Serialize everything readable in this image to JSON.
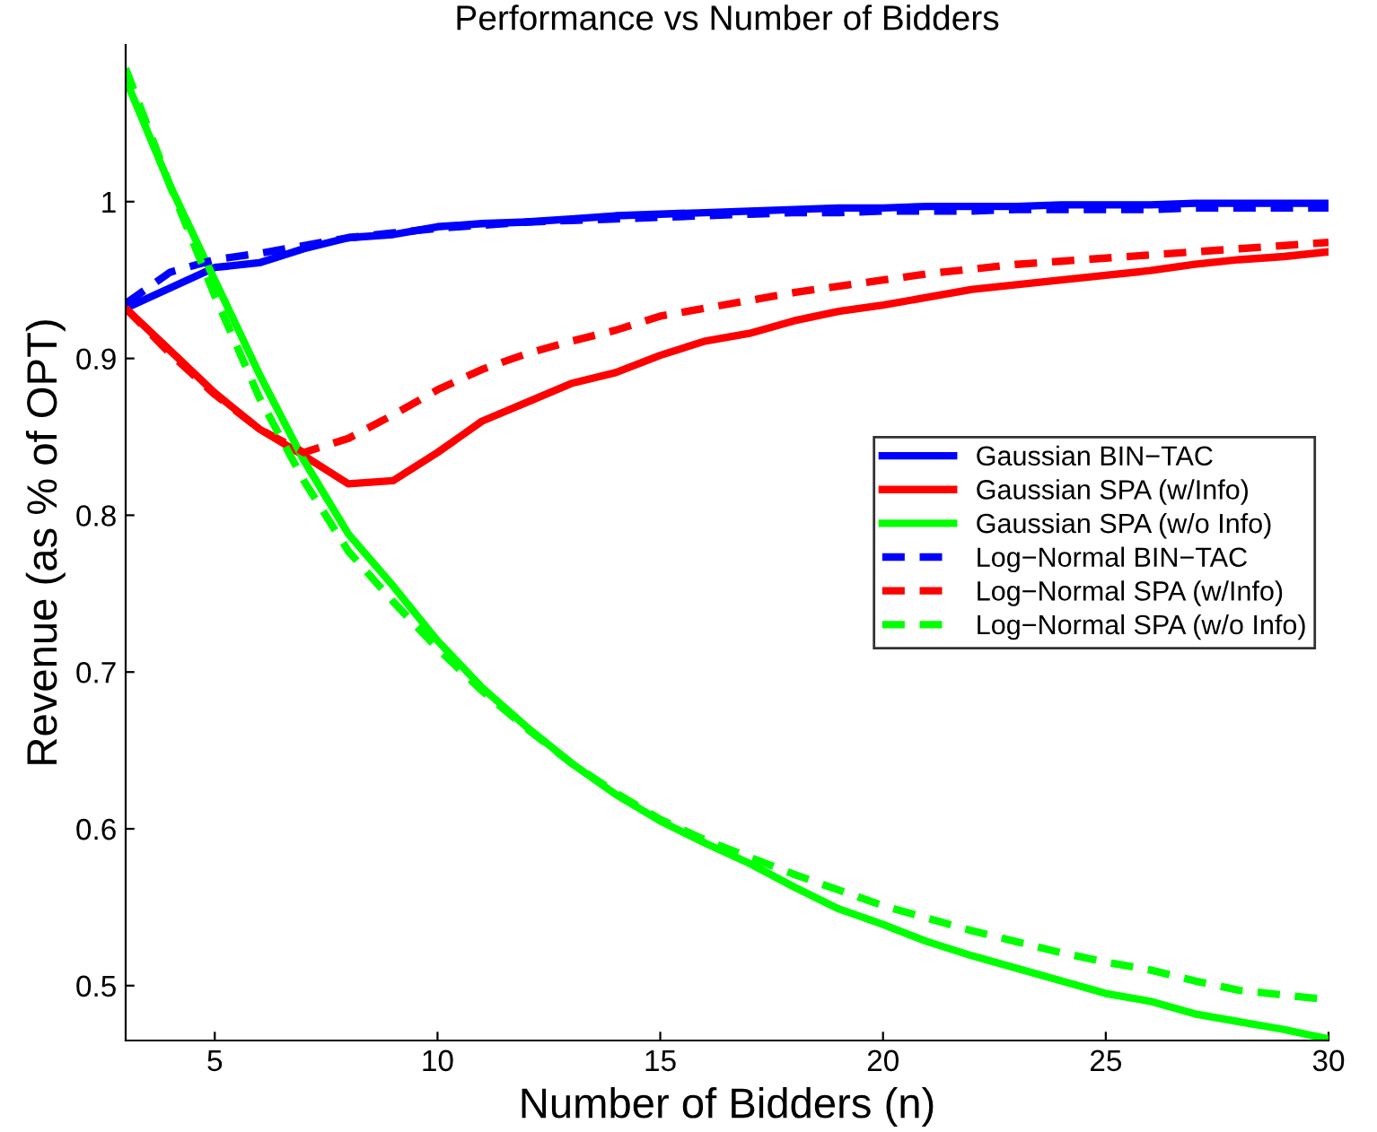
{
  "chart_data": {
    "type": "line",
    "title": "Performance vs Number of Bidders",
    "xlabel": "Number of Bidders (n)",
    "ylabel": "Revenue (as % of OPT)",
    "x": [
      3,
      4,
      5,
      6,
      7,
      8,
      9,
      10,
      11,
      12,
      13,
      14,
      15,
      16,
      17,
      18,
      19,
      20,
      21,
      22,
      23,
      24,
      25,
      26,
      27,
      28,
      29,
      30
    ],
    "series": [
      {
        "name": "Gaussian BIN−TAC",
        "color": "#0000ff",
        "line_style": "solid",
        "values": [
          0.932,
          0.945,
          0.958,
          0.961,
          0.97,
          0.977,
          0.979,
          0.984,
          0.986,
          0.987,
          0.989,
          0.991,
          0.992,
          0.993,
          0.994,
          0.995,
          0.996,
          0.996,
          0.997,
          0.997,
          0.997,
          0.998,
          0.998,
          0.998,
          0.999,
          0.999,
          0.999,
          0.999
        ]
      },
      {
        "name": "Gaussian SPA (w/Info)",
        "color": "#ff0000",
        "line_style": "solid",
        "values": [
          0.932,
          0.905,
          0.878,
          0.855,
          0.838,
          0.82,
          0.822,
          0.84,
          0.86,
          0.872,
          0.884,
          0.891,
          0.902,
          0.911,
          0.916,
          0.924,
          0.93,
          0.934,
          0.939,
          0.944,
          0.947,
          0.95,
          0.953,
          0.956,
          0.96,
          0.963,
          0.965,
          0.968
        ]
      },
      {
        "name": "Gaussian SPA (w/o Info)",
        "color": "#00ff00",
        "line_style": "solid",
        "values": [
          1.078,
          1.01,
          0.95,
          0.89,
          0.835,
          0.788,
          0.755,
          0.72,
          0.69,
          0.665,
          0.642,
          0.622,
          0.605,
          0.591,
          0.578,
          0.563,
          0.549,
          0.539,
          0.528,
          0.519,
          0.511,
          0.503,
          0.495,
          0.49,
          0.482,
          0.477,
          0.472,
          0.466
        ]
      },
      {
        "name": "Log−Normal BIN−TAC",
        "color": "#0000ff",
        "line_style": "dashed",
        "values": [
          0.935,
          0.955,
          0.963,
          0.967,
          0.972,
          0.977,
          0.98,
          0.983,
          0.985,
          0.987,
          0.988,
          0.989,
          0.99,
          0.991,
          0.992,
          0.993,
          0.993,
          0.994,
          0.994,
          0.994,
          0.995,
          0.995,
          0.995,
          0.995,
          0.996,
          0.996,
          0.996,
          0.996
        ]
      },
      {
        "name": "Log−Normal SPA (w/Info)",
        "color": "#ff0000",
        "line_style": "dashed",
        "values": [
          0.932,
          0.903,
          0.877,
          0.855,
          0.84,
          0.849,
          0.864,
          0.88,
          0.893,
          0.903,
          0.911,
          0.918,
          0.927,
          0.932,
          0.937,
          0.942,
          0.946,
          0.95,
          0.954,
          0.957,
          0.96,
          0.962,
          0.964,
          0.966,
          0.968,
          0.97,
          0.972,
          0.974
        ]
      },
      {
        "name": "Log−Normal SPA (w/o Info)",
        "color": "#00ff00",
        "line_style": "dashed",
        "values": [
          1.085,
          1.01,
          0.94,
          0.875,
          0.822,
          0.777,
          0.745,
          0.715,
          0.688,
          0.664,
          0.642,
          0.623,
          0.606,
          0.593,
          0.582,
          0.571,
          0.561,
          0.551,
          0.543,
          0.535,
          0.528,
          0.521,
          0.515,
          0.51,
          0.503,
          0.497,
          0.494,
          0.491
        ]
      }
    ],
    "xlim": [
      3,
      30
    ],
    "ylim": [
      0.465,
      1.1
    ],
    "xticks": [
      5,
      10,
      15,
      20,
      25,
      30
    ],
    "yticks": [
      0.5,
      0.6,
      0.7,
      0.8,
      0.9,
      1
    ],
    "grid": false,
    "legend": "right",
    "marker": "none"
  }
}
